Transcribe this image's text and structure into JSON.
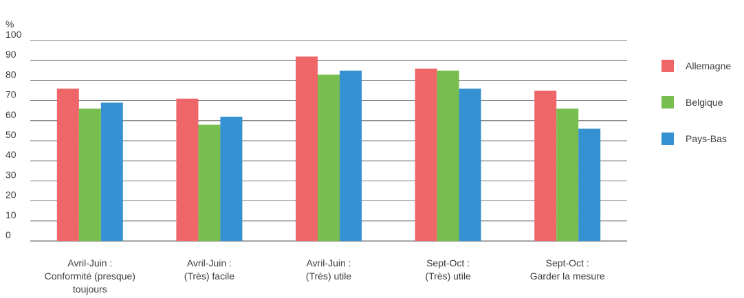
{
  "chart_data": {
    "type": "bar",
    "unit": "%",
    "categories": [
      [
        "Avril-Juin :",
        "Conformité (presque)",
        "toujours"
      ],
      [
        "Avril-Juin :",
        "(Très) facile"
      ],
      [
        "Avril-Juin :",
        "(Très) utile"
      ],
      [
        "Sept-Oct :",
        "(Très) utile"
      ],
      [
        "Sept-Oct :",
        "Garder la mesure"
      ]
    ],
    "series": [
      {
        "name": "Allemagne",
        "color": "#ef6668",
        "values": [
          76,
          71,
          92,
          86,
          75
        ]
      },
      {
        "name": "Belgique",
        "color": "#77be4e",
        "values": [
          66,
          58,
          83,
          85,
          66
        ]
      },
      {
        "name": "Pays-Bas",
        "color": "#3591d1",
        "values": [
          69,
          62,
          85,
          76,
          56
        ]
      }
    ],
    "ylim": [
      0,
      100
    ],
    "yticks": [
      0,
      10,
      20,
      30,
      40,
      50,
      60,
      70,
      80,
      90,
      100
    ],
    "grid": true,
    "legend_position": "right"
  }
}
